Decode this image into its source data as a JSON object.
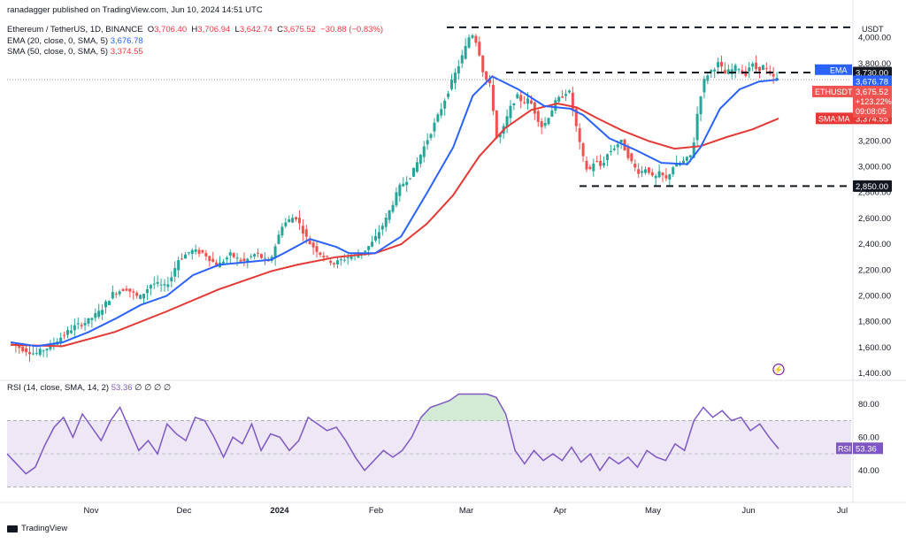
{
  "header": {
    "publisher_line": "ranadagger published on TradingView.com, Jun 10, 2024 14:51 UTC",
    "symbol_line": "Ethereum / TetherUS, 1D, BINANCE",
    "ohlc": {
      "o_label": "O",
      "o": "3,706.40",
      "h_label": "H",
      "h": "3,706.94",
      "l_label": "L",
      "l": "3,642.74",
      "c_label": "C",
      "c": "3,675.52",
      "change": "−30.88 (−0.83%)"
    },
    "ema_line": {
      "label": "EMA (20, close, 0, SMA, 5)",
      "value": "3,676.78"
    },
    "sma_line": {
      "label": "SMA (50, close, 0, SMA, 5)",
      "value": "3,374.55"
    },
    "rsi_line": {
      "label": "RSI (14, close, SMA, 14, 2)",
      "value": "53.36",
      "extras": "∅ ∅ ∅ ∅"
    }
  },
  "footer": {
    "brand": "TradingView"
  },
  "colors": {
    "up": "#26a69a",
    "down": "#ef5350",
    "ema": "#2962ff",
    "sma": "#e53935",
    "rsi": "#7e57c2",
    "rsi_band": "#ede7f6",
    "level": "#131722",
    "axis_text": "#131722"
  },
  "chart_data": [
    {
      "type": "candlestick",
      "scale": "linear",
      "ylim": [
        1400,
        4100
      ],
      "x_ticks": [
        "Nov",
        "Dec",
        "2024",
        "Feb",
        "Mar",
        "Apr",
        "May",
        "Jun",
        "Jul"
      ],
      "y_ticks": [
        1400,
        1600,
        1800,
        2000,
        2200,
        2400,
        2600,
        2800,
        3000,
        3200,
        3400,
        3600,
        3800,
        4000
      ],
      "y_tick_labels": [
        "1,400.00",
        "1,600.00",
        "1,800.00",
        "2,000.00",
        "2,200.00",
        "2,400.00",
        "2,600.00",
        "2,800.00",
        "3,000.00",
        "3,200.00",
        "3,400.00",
        "3,600.00",
        "3,800.00",
        "4,000.00"
      ],
      "axis_unit": "USDT",
      "price_path": [
        [
          0,
          1640
        ],
        [
          10,
          1590
        ],
        [
          20,
          1550
        ],
        [
          30,
          1600
        ],
        [
          40,
          1680
        ],
        [
          50,
          1760
        ],
        [
          60,
          1800
        ],
        [
          70,
          1880
        ],
        [
          80,
          2020
        ],
        [
          90,
          2060
        ],
        [
          100,
          1980
        ],
        [
          110,
          2100
        ],
        [
          120,
          2070
        ],
        [
          125,
          2150
        ],
        [
          130,
          2280
        ],
        [
          140,
          2350
        ],
        [
          150,
          2330
        ],
        [
          160,
          2230
        ],
        [
          170,
          2320
        ],
        [
          180,
          2260
        ],
        [
          190,
          2330
        ],
        [
          200,
          2250
        ],
        [
          210,
          2550
        ],
        [
          220,
          2620
        ],
        [
          230,
          2420
        ],
        [
          240,
          2320
        ],
        [
          250,
          2250
        ],
        [
          260,
          2300
        ],
        [
          270,
          2320
        ],
        [
          280,
          2420
        ],
        [
          290,
          2600
        ],
        [
          300,
          2840
        ],
        [
          310,
          2950
        ],
        [
          320,
          3180
        ],
        [
          330,
          3400
        ],
        [
          340,
          3650
        ],
        [
          350,
          3900
        ],
        [
          355,
          4050
        ],
        [
          360,
          3950
        ],
        [
          365,
          3700
        ],
        [
          370,
          3620
        ],
        [
          375,
          3200
        ],
        [
          380,
          3300
        ],
        [
          385,
          3450
        ],
        [
          390,
          3550
        ],
        [
          395,
          3500
        ],
        [
          400,
          3520
        ],
        [
          405,
          3400
        ],
        [
          410,
          3300
        ],
        [
          415,
          3400
        ],
        [
          420,
          3500
        ],
        [
          430,
          3600
        ],
        [
          435,
          3350
        ],
        [
          440,
          3100
        ],
        [
          445,
          2950
        ],
        [
          450,
          3050
        ],
        [
          455,
          3000
        ],
        [
          460,
          3100
        ],
        [
          465,
          3150
        ],
        [
          470,
          3200
        ],
        [
          475,
          3100
        ],
        [
          480,
          3000
        ],
        [
          485,
          2950
        ],
        [
          490,
          3000
        ],
        [
          495,
          2900
        ],
        [
          500,
          2950
        ],
        [
          505,
          2900
        ],
        [
          510,
          3000
        ],
        [
          520,
          3050
        ],
        [
          525,
          3100
        ],
        [
          530,
          3500
        ],
        [
          535,
          3700
        ],
        [
          540,
          3750
        ],
        [
          545,
          3800
        ],
        [
          550,
          3720
        ],
        [
          555,
          3750
        ],
        [
          560,
          3780
        ],
        [
          565,
          3700
        ],
        [
          570,
          3800
        ],
        [
          575,
          3750
        ],
        [
          580,
          3780
        ],
        [
          585,
          3700
        ],
        [
          590,
          3680
        ]
      ],
      "ema": {
        "name": "EMA",
        "label": "EMA",
        "value_label": "3,676.78",
        "value": 3676.78,
        "path": [
          [
            0,
            1640
          ],
          [
            20,
            1610
          ],
          [
            40,
            1640
          ],
          [
            60,
            1720
          ],
          [
            80,
            1820
          ],
          [
            100,
            1930
          ],
          [
            120,
            2000
          ],
          [
            140,
            2160
          ],
          [
            160,
            2240
          ],
          [
            180,
            2260
          ],
          [
            200,
            2280
          ],
          [
            210,
            2330
          ],
          [
            230,
            2440
          ],
          [
            250,
            2380
          ],
          [
            260,
            2330
          ],
          [
            280,
            2330
          ],
          [
            300,
            2460
          ],
          [
            320,
            2800
          ],
          [
            340,
            3150
          ],
          [
            355,
            3550
          ],
          [
            370,
            3700
          ],
          [
            390,
            3600
          ],
          [
            410,
            3470
          ],
          [
            430,
            3450
          ],
          [
            440,
            3400
          ],
          [
            460,
            3220
          ],
          [
            480,
            3130
          ],
          [
            500,
            3030
          ],
          [
            520,
            3020
          ],
          [
            530,
            3150
          ],
          [
            545,
            3450
          ],
          [
            560,
            3600
          ],
          [
            575,
            3660
          ],
          [
            590,
            3676
          ]
        ]
      },
      "sma": {
        "name": "SMA:MA",
        "label": "SMA:MA",
        "value_label": "3,374.55",
        "value": 3374.55,
        "path": [
          [
            0,
            1620
          ],
          [
            40,
            1610
          ],
          [
            80,
            1720
          ],
          [
            120,
            1880
          ],
          [
            160,
            2050
          ],
          [
            200,
            2190
          ],
          [
            220,
            2240
          ],
          [
            250,
            2300
          ],
          [
            280,
            2330
          ],
          [
            300,
            2400
          ],
          [
            320,
            2560
          ],
          [
            340,
            2780
          ],
          [
            360,
            3080
          ],
          [
            380,
            3300
          ],
          [
            400,
            3440
          ],
          [
            420,
            3490
          ],
          [
            435,
            3460
          ],
          [
            450,
            3380
          ],
          [
            470,
            3280
          ],
          [
            490,
            3200
          ],
          [
            510,
            3140
          ],
          [
            530,
            3160
          ],
          [
            550,
            3230
          ],
          [
            570,
            3290
          ],
          [
            590,
            3374
          ]
        ]
      },
      "levels": [
        {
          "label": "3,730.00",
          "value": 3730,
          "style": "dash"
        },
        {
          "label": "2,850.00",
          "value": 2850,
          "style": "dash"
        },
        {
          "label": "4,080",
          "value": 4080,
          "style": "dash"
        }
      ],
      "last_price": {
        "label": "ETHUSDT",
        "value": 3675.52,
        "value_label": "3,675.52",
        "change_label": "+123.22%",
        "countdown": "09:08:05"
      },
      "annotations": [
        {
          "text": "⚡"
        }
      ]
    },
    {
      "type": "line",
      "name": "RSI",
      "ylim": [
        25,
        90
      ],
      "y_ticks": [
        40,
        60,
        80
      ],
      "y_tick_labels": [
        "40.00",
        "60.00",
        "80.00"
      ],
      "overbought": 70,
      "oversold": 30,
      "midline": 50,
      "value": 53.36,
      "value_label": "53.36",
      "path": [
        [
          0,
          50
        ],
        [
          10,
          44
        ],
        [
          20,
          38
        ],
        [
          30,
          42
        ],
        [
          40,
          55
        ],
        [
          50,
          66
        ],
        [
          60,
          72
        ],
        [
          70,
          60
        ],
        [
          80,
          74
        ],
        [
          90,
          66
        ],
        [
          100,
          58
        ],
        [
          110,
          70
        ],
        [
          120,
          78
        ],
        [
          130,
          65
        ],
        [
          140,
          52
        ],
        [
          150,
          58
        ],
        [
          160,
          50
        ],
        [
          170,
          68
        ],
        [
          180,
          62
        ],
        [
          190,
          58
        ],
        [
          200,
          72
        ],
        [
          210,
          70
        ],
        [
          220,
          60
        ],
        [
          230,
          48
        ],
        [
          240,
          60
        ],
        [
          250,
          56
        ],
        [
          260,
          68
        ],
        [
          270,
          52
        ],
        [
          280,
          62
        ],
        [
          290,
          60
        ],
        [
          300,
          52
        ],
        [
          310,
          58
        ],
        [
          320,
          72
        ],
        [
          330,
          68
        ],
        [
          340,
          64
        ],
        [
          350,
          66
        ],
        [
          360,
          58
        ],
        [
          370,
          48
        ],
        [
          380,
          40
        ],
        [
          390,
          46
        ],
        [
          400,
          52
        ],
        [
          410,
          48
        ],
        [
          420,
          52
        ],
        [
          430,
          60
        ],
        [
          440,
          72
        ],
        [
          450,
          78
        ],
        [
          460,
          80
        ],
        [
          470,
          82
        ],
        [
          480,
          86
        ],
        [
          490,
          86
        ],
        [
          500,
          86
        ],
        [
          510,
          86
        ],
        [
          520,
          84
        ],
        [
          530,
          74
        ],
        [
          540,
          52
        ],
        [
          550,
          44
        ],
        [
          560,
          52
        ],
        [
          570,
          46
        ],
        [
          580,
          50
        ],
        [
          590,
          46
        ],
        [
          600,
          54
        ],
        [
          610,
          45
        ],
        [
          620,
          50
        ],
        [
          630,
          40
        ],
        [
          640,
          48
        ],
        [
          650,
          44
        ],
        [
          660,
          48
        ],
        [
          670,
          42
        ],
        [
          680,
          52
        ],
        [
          690,
          48
        ],
        [
          700,
          46
        ],
        [
          710,
          56
        ],
        [
          720,
          52
        ],
        [
          730,
          70
        ],
        [
          740,
          78
        ],
        [
          750,
          72
        ],
        [
          760,
          76
        ],
        [
          770,
          70
        ],
        [
          780,
          72
        ],
        [
          790,
          64
        ],
        [
          800,
          68
        ],
        [
          810,
          60
        ],
        [
          820,
          53
        ]
      ]
    }
  ]
}
